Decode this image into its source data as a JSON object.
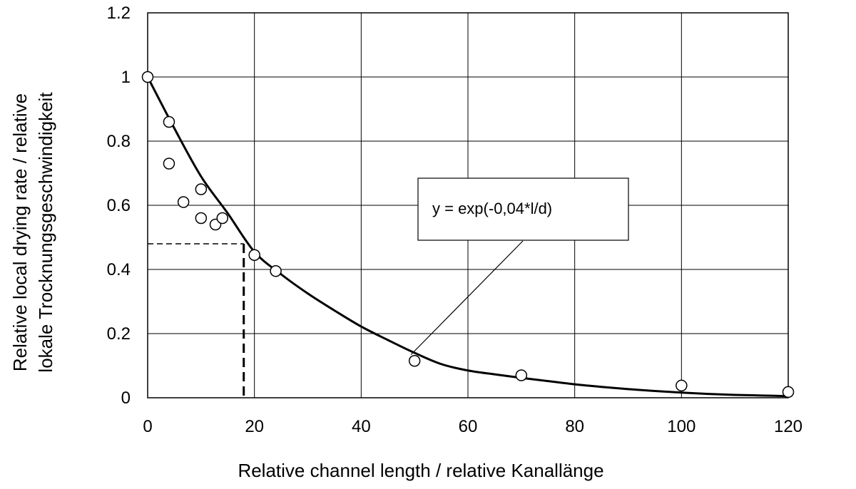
{
  "chart_data": {
    "type": "scatter",
    "xlabel": "Relative  channel length / relative  Kanallänge",
    "ylabel_lines": [
      "Relative  local drying rate / relative",
      "lokale Trocknungsgeschwindigkeit"
    ],
    "xlim": [
      0,
      120
    ],
    "ylim": [
      0,
      1.2
    ],
    "x_ticks": [
      0,
      20,
      40,
      60,
      80,
      100,
      120
    ],
    "y_ticks": [
      0,
      0.2,
      0.4,
      0.6,
      0.8,
      1.0,
      1.2
    ],
    "x_tick_labels": [
      "0",
      "20",
      "40",
      "60",
      "80",
      "100",
      "120"
    ],
    "y_tick_labels": [
      "0",
      "0.2",
      "0.4",
      "0.6",
      "0.8",
      "1",
      "1.2"
    ],
    "grid": true,
    "points": {
      "x": [
        0,
        4,
        4,
        6.7,
        10,
        10,
        12.7,
        14,
        20,
        24,
        50,
        70,
        100,
        120
      ],
      "y": [
        1.0,
        0.86,
        0.73,
        0.61,
        0.56,
        0.65,
        0.54,
        0.56,
        0.445,
        0.395,
        0.115,
        0.07,
        0.038,
        0.018
      ]
    },
    "fit_curve": {
      "x": [
        0,
        5,
        10,
        15,
        20,
        25,
        30,
        35,
        40,
        45,
        50,
        55,
        60,
        65,
        70,
        75,
        80,
        85,
        90,
        95,
        100,
        105,
        110,
        115,
        120
      ],
      "y": [
        1.0,
        0.84,
        0.69,
        0.575,
        0.455,
        0.385,
        0.325,
        0.272,
        0.222,
        0.18,
        0.14,
        0.105,
        0.085,
        0.073,
        0.062,
        0.052,
        0.042,
        0.034,
        0.027,
        0.021,
        0.016,
        0.012,
        0.009,
        0.007,
        0.005
      ]
    },
    "annotation": {
      "text": "y = exp(-0,04*l/d)",
      "points_to": {
        "x": 50,
        "y": 0.13
      }
    },
    "reference_lines": {
      "x": 18,
      "y": 0.48
    }
  }
}
